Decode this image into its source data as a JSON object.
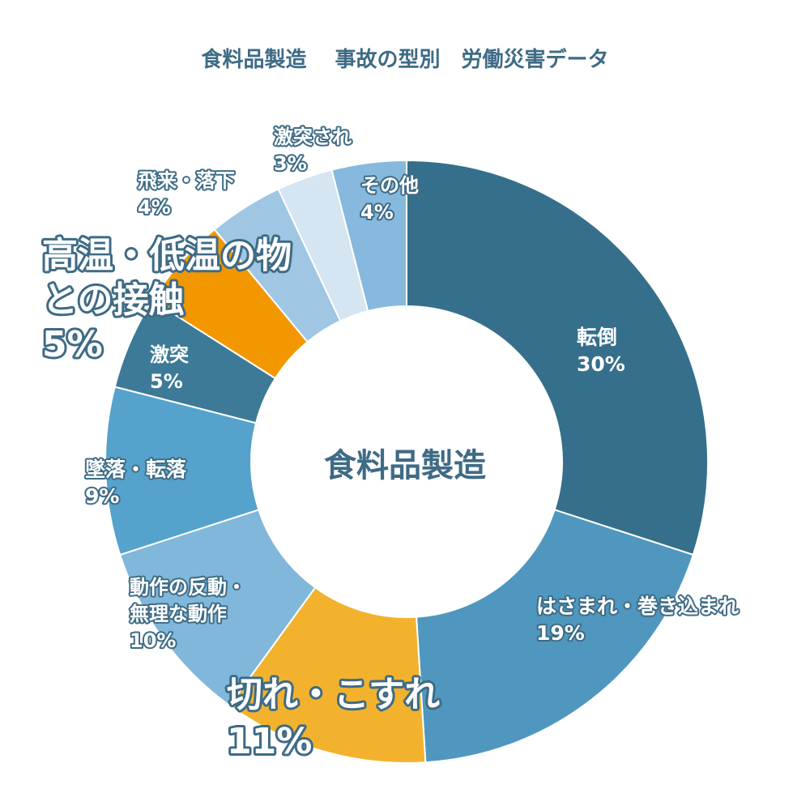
{
  "chart_data": {
    "type": "pie",
    "title": "食料品製造　 事故の型別　労働災害データ",
    "center_label": "食料品製造",
    "unit": "%",
    "slices": [
      {
        "name": "転倒",
        "value": 30,
        "color": "#366f8b"
      },
      {
        "name": "はさまれ・巻き込まれ",
        "value": 19,
        "color": "#4f97be"
      },
      {
        "name": "切れ・こすれ",
        "value": 11,
        "color": "#f3b22d"
      },
      {
        "name": "動作の反動・無理な動作",
        "value": 10,
        "color": "#80b7da"
      },
      {
        "name": "墜落・転落",
        "value": 9,
        "color": "#55a2cc"
      },
      {
        "name": "激突",
        "value": 5,
        "color": "#3d7a97"
      },
      {
        "name": "高温・低温の物との接触",
        "value": 5,
        "color": "#f39700"
      },
      {
        "name": "飛来・落下",
        "value": 4,
        "color": "#9fc6e3"
      },
      {
        "name": "激突され",
        "value": 3,
        "color": "#d5e5f1"
      },
      {
        "name": "その他",
        "value": 4,
        "color": "#86b9dd"
      }
    ],
    "labels": [
      {
        "lines": [
          "転倒"
        ],
        "pct": "30%"
      },
      {
        "lines": [
          "はさまれ・巻き込まれ"
        ],
        "pct": "19%"
      },
      {
        "lines": [
          "切れ・こすれ"
        ],
        "pct": "11%"
      },
      {
        "lines": [
          "動作の反動・",
          "無理な動作"
        ],
        "pct": "10%"
      },
      {
        "lines": [
          "墜落・転落"
        ],
        "pct": "9%"
      },
      {
        "lines": [
          "激突"
        ],
        "pct": "5%"
      },
      {
        "lines": [
          "高温・低温の物",
          "との接触"
        ],
        "pct": "5%"
      },
      {
        "lines": [
          "飛来・落下"
        ],
        "pct": "4%"
      },
      {
        "lines": [
          "激突され"
        ],
        "pct": "3%"
      },
      {
        "lines": [
          "その他"
        ],
        "pct": "4%"
      }
    ]
  }
}
